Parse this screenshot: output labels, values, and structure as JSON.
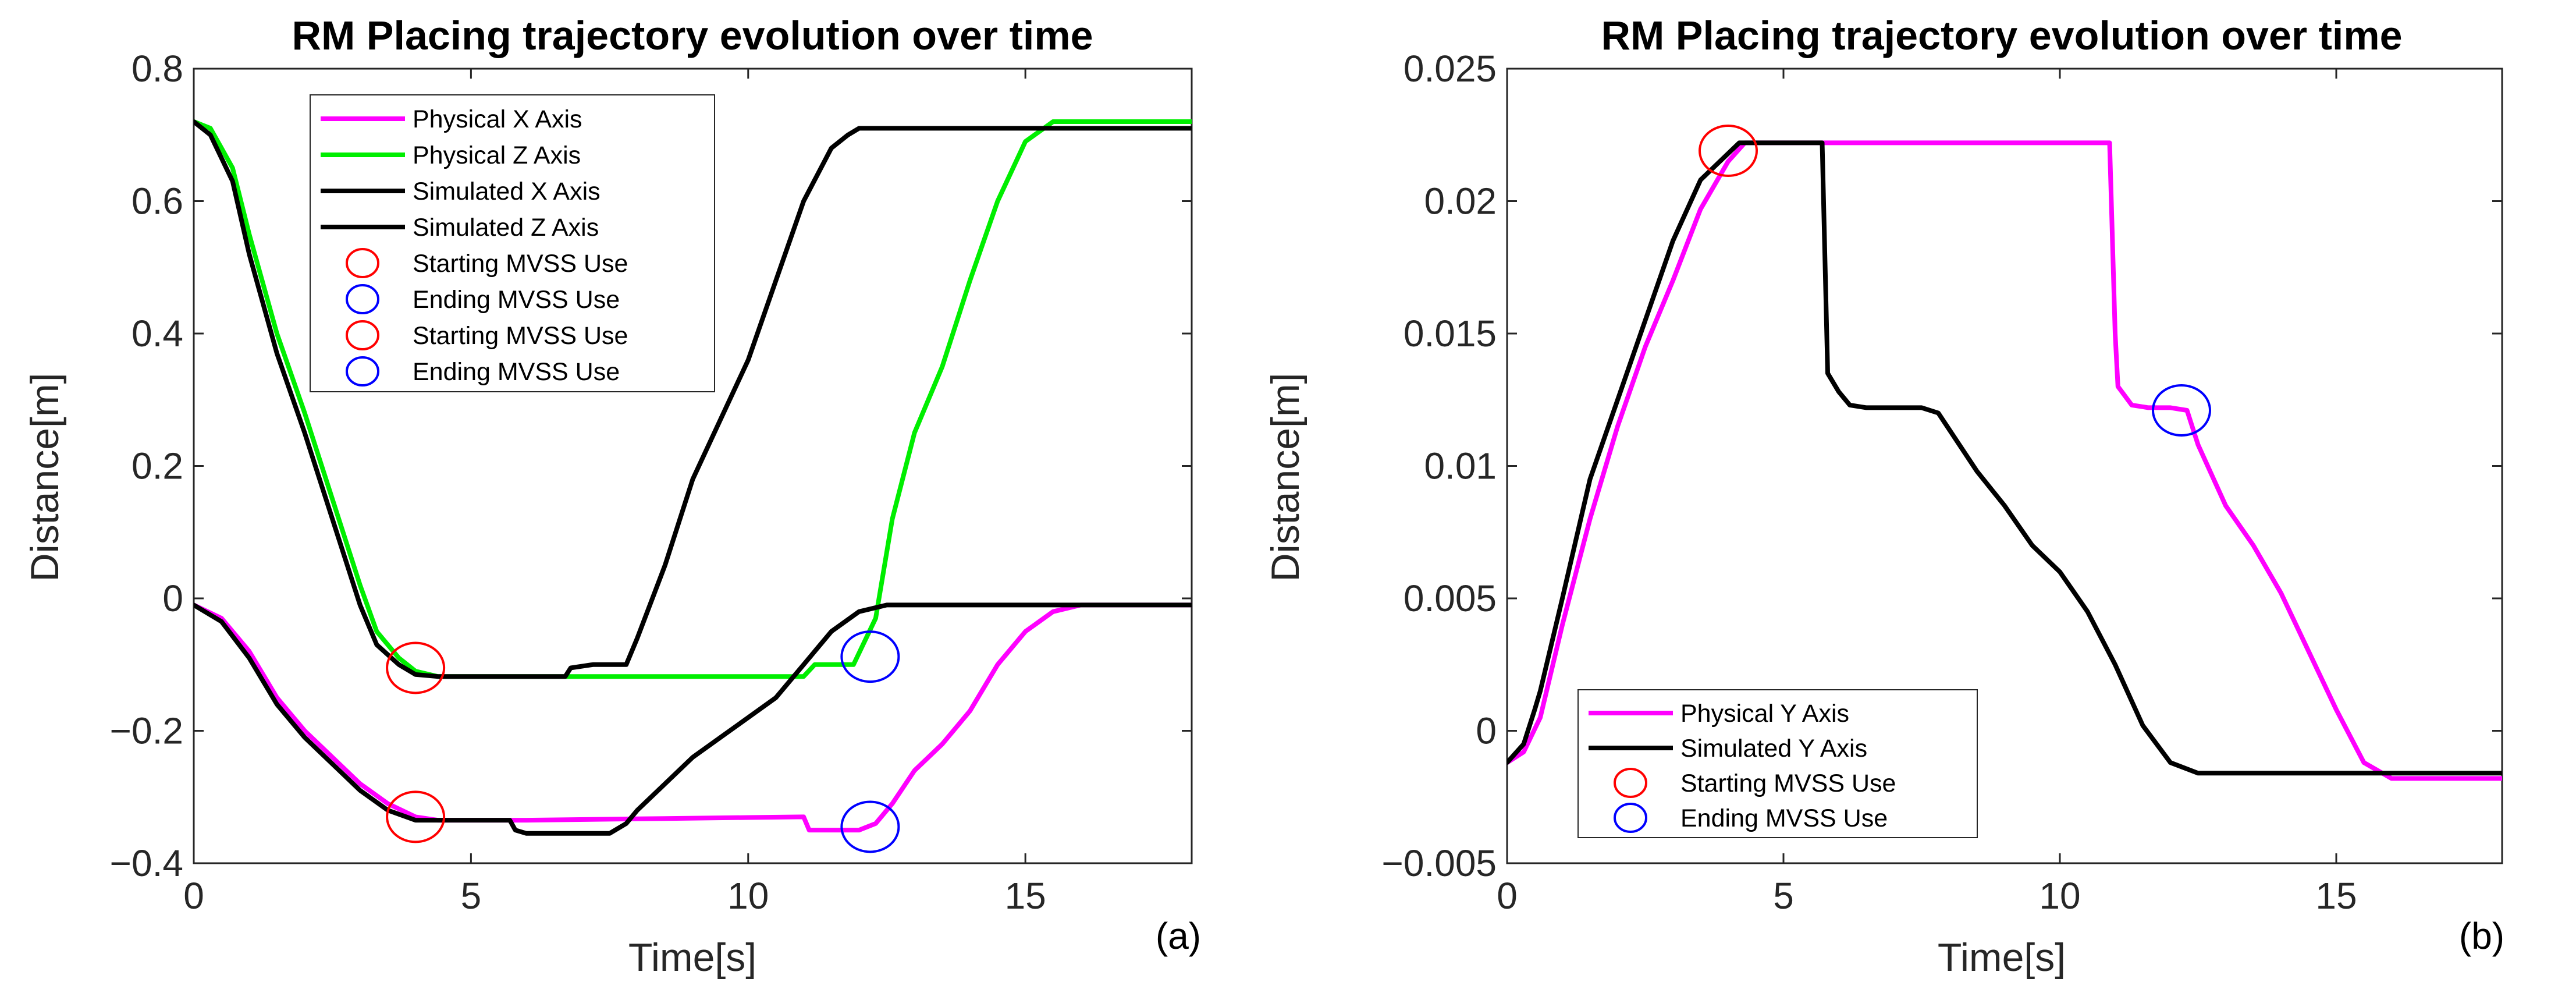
{
  "chart_data": [
    {
      "type": "line",
      "panel_label": "(a)",
      "title": "RM Placing trajectory evolution over time",
      "xlabel": "Time[s]",
      "ylabel": "Distance[m]",
      "xlim": [
        0,
        18
      ],
      "ylim": [
        -0.4,
        0.8
      ],
      "xticks": [
        0,
        5,
        10,
        15
      ],
      "xtick_labels": [
        "0",
        "5",
        "10",
        "15"
      ],
      "yticks": [
        -0.4,
        -0.2,
        0,
        0.2,
        0.4,
        0.6,
        0.8
      ],
      "ytick_labels": [
        "−0.4",
        "−0.2",
        "0",
        "0.2",
        "0.4",
        "0.6",
        "0.8"
      ],
      "legend_position": "top-center",
      "series": [
        {
          "name": "Physical X Axis",
          "color": "#ff00ff",
          "x": [
            0,
            0.5,
            1,
            1.5,
            2,
            2.5,
            3,
            3.5,
            4,
            4.4,
            5,
            6,
            8,
            10,
            11,
            11.1,
            11.5,
            12,
            12.3,
            12.6,
            13,
            13.5,
            14,
            14.5,
            15,
            15.5,
            16,
            18
          ],
          "y": [
            -0.01,
            -0.03,
            -0.08,
            -0.15,
            -0.2,
            -0.24,
            -0.28,
            -0.31,
            -0.33,
            -0.335,
            -0.335,
            -0.335,
            -0.333,
            -0.331,
            -0.33,
            -0.35,
            -0.35,
            -0.35,
            -0.34,
            -0.31,
            -0.26,
            -0.22,
            -0.17,
            -0.1,
            -0.05,
            -0.02,
            -0.01,
            -0.01
          ]
        },
        {
          "name": "Physical Z Axis",
          "color": "#00ee00",
          "x": [
            0,
            0.3,
            0.7,
            1,
            1.5,
            2,
            2.5,
            3,
            3.3,
            3.7,
            4,
            4.4,
            5,
            8,
            11,
            11.2,
            11.9,
            12.3,
            12.6,
            13,
            13.5,
            14,
            14.5,
            15,
            15.5,
            16,
            18
          ],
          "y": [
            0.72,
            0.71,
            0.65,
            0.55,
            0.4,
            0.28,
            0.15,
            0.02,
            -0.05,
            -0.09,
            -0.11,
            -0.118,
            -0.118,
            -0.118,
            -0.118,
            -0.1,
            -0.1,
            -0.03,
            0.12,
            0.25,
            0.35,
            0.48,
            0.6,
            0.69,
            0.72,
            0.72,
            0.72
          ]
        },
        {
          "name": "Simulated X Axis",
          "color": "#000000",
          "x": [
            0,
            0.5,
            1,
            1.5,
            2,
            2.5,
            3,
            3.5,
            4,
            4.4,
            5,
            5.7,
            5.8,
            6,
            7,
            7.5,
            7.8,
            8,
            8.5,
            9,
            9.5,
            10,
            10.5,
            11,
            11.5,
            12,
            12.5,
            13,
            14,
            18
          ],
          "y": [
            -0.01,
            -0.035,
            -0.09,
            -0.16,
            -0.21,
            -0.25,
            -0.29,
            -0.32,
            -0.335,
            -0.335,
            -0.335,
            -0.335,
            -0.35,
            -0.355,
            -0.355,
            -0.355,
            -0.34,
            -0.32,
            -0.28,
            -0.24,
            -0.21,
            -0.18,
            -0.15,
            -0.1,
            -0.05,
            -0.02,
            -0.01,
            -0.01,
            -0.01,
            -0.01
          ]
        },
        {
          "name": "Simulated Z Axis",
          "color": "#000000",
          "x": [
            0,
            0.3,
            0.7,
            1,
            1.5,
            2,
            2.5,
            3,
            3.3,
            3.7,
            4,
            4.4,
            5,
            6.7,
            6.8,
            7.2,
            7.8,
            8,
            8.5,
            9,
            9.5,
            10,
            10.5,
            11,
            11.5,
            11.8,
            12,
            12.5,
            18
          ],
          "y": [
            0.72,
            0.7,
            0.63,
            0.52,
            0.37,
            0.25,
            0.12,
            -0.01,
            -0.07,
            -0.1,
            -0.115,
            -0.118,
            -0.118,
            -0.118,
            -0.105,
            -0.1,
            -0.1,
            -0.06,
            0.05,
            0.18,
            0.27,
            0.36,
            0.48,
            0.6,
            0.68,
            0.7,
            0.71,
            0.71,
            0.71
          ]
        },
        {
          "name": "Starting MVSS Use",
          "marker": "circle",
          "color": "#ff0000",
          "x": [
            4.0
          ],
          "y": [
            -0.105
          ]
        },
        {
          "name": "Ending MVSS Use",
          "marker": "circle",
          "color": "#0000ff",
          "x": [
            12.2
          ],
          "y": [
            -0.088
          ]
        },
        {
          "name": "Starting MVSS Use",
          "marker": "circle",
          "color": "#ff0000",
          "x": [
            4.0
          ],
          "y": [
            -0.33
          ]
        },
        {
          "name": "Ending MVSS Use",
          "marker": "circle",
          "color": "#0000ff",
          "x": [
            12.2
          ],
          "y": [
            -0.345
          ]
        }
      ]
    },
    {
      "type": "line",
      "panel_label": "(b)",
      "title": "RM Placing trajectory evolution over time",
      "xlabel": "Time[s]",
      "ylabel": "Distance[m]",
      "xlim": [
        0,
        18
      ],
      "ylim": [
        -0.005,
        0.025
      ],
      "xticks": [
        0,
        5,
        10,
        15
      ],
      "xtick_labels": [
        "0",
        "5",
        "10",
        "15"
      ],
      "yticks": [
        -0.005,
        0,
        0.005,
        0.01,
        0.015,
        0.02,
        0.025
      ],
      "ytick_labels": [
        "−0.005",
        "0",
        "0.005",
        "0.01",
        "0.015",
        "0.02",
        "0.025"
      ],
      "legend_position": "bottom-left",
      "series": [
        {
          "name": "Physical Y Axis",
          "color": "#ff00ff",
          "x": [
            0,
            0.3,
            0.6,
            1,
            1.5,
            2,
            2.5,
            3,
            3.5,
            4,
            4.3,
            5,
            8,
            10.9,
            11,
            11.05,
            11.3,
            11.6,
            12,
            12.3,
            12.5,
            13,
            13.5,
            14,
            14.5,
            15,
            15.5,
            16,
            18
          ],
          "y": [
            -0.0012,
            -0.0008,
            0.0005,
            0.004,
            0.008,
            0.0115,
            0.0145,
            0.017,
            0.0197,
            0.0215,
            0.0222,
            0.0222,
            0.0222,
            0.0222,
            0.015,
            0.013,
            0.0123,
            0.0122,
            0.0122,
            0.0121,
            0.0108,
            0.0085,
            0.007,
            0.0052,
            0.003,
            0.0008,
            -0.0012,
            -0.0018,
            -0.0018
          ]
        },
        {
          "name": "Simulated Y Axis",
          "color": "#000000",
          "x": [
            0,
            0.3,
            0.5,
            0.6,
            1,
            1.5,
            2,
            2.5,
            3,
            3.5,
            4,
            4.2,
            5,
            5.7,
            5.8,
            6.0,
            6.2,
            6.5,
            7.0,
            7.5,
            7.8,
            8.5,
            9.0,
            9.5,
            10.0,
            10.5,
            11.0,
            11.5,
            12.0,
            12.5,
            18
          ],
          "y": [
            -0.0012,
            -0.0005,
            0.0008,
            0.0015,
            0.005,
            0.0095,
            0.0125,
            0.0155,
            0.0185,
            0.0208,
            0.0218,
            0.0222,
            0.0222,
            0.0222,
            0.0135,
            0.0128,
            0.0123,
            0.0122,
            0.0122,
            0.0122,
            0.012,
            0.0098,
            0.0085,
            0.007,
            0.006,
            0.0045,
            0.0025,
            0.0002,
            -0.0012,
            -0.0016,
            -0.0016
          ]
        },
        {
          "name": "Starting MVSS Use",
          "marker": "circle",
          "color": "#ff0000",
          "x": [
            4.0
          ],
          "y": [
            0.0219
          ]
        },
        {
          "name": "Ending MVSS Use",
          "marker": "circle",
          "color": "#0000ff",
          "x": [
            12.2
          ],
          "y": [
            0.0121
          ]
        }
      ]
    }
  ]
}
